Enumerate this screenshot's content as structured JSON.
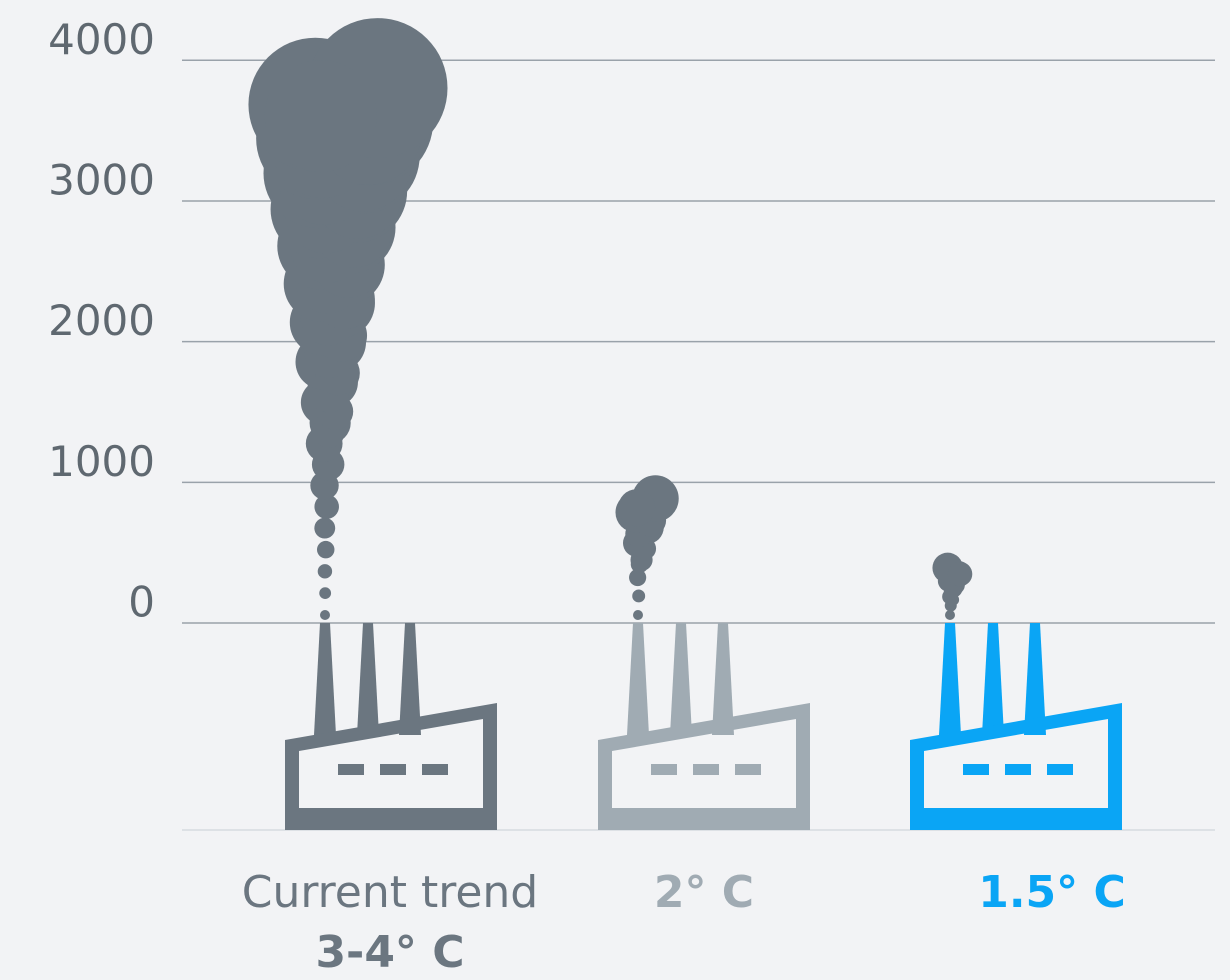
{
  "chart_data": {
    "type": "pictogram",
    "categories": [
      [
        "Current trend",
        "3-4° C"
      ],
      [
        "2° C"
      ],
      [
        "1.5° C"
      ]
    ],
    "values": [
      4300,
      1050,
      500
    ],
    "colors": [
      "#6b7680",
      "#a0abb3",
      "#0aa5f5"
    ],
    "smoke_color": "#6b7680",
    "ylim": [
      0,
      4400
    ],
    "yticks": [
      0,
      1000,
      2000,
      3000,
      4000
    ],
    "grid": true
  }
}
